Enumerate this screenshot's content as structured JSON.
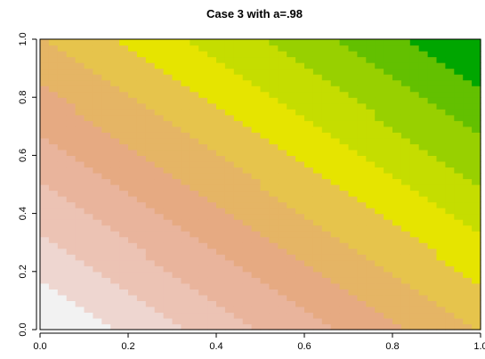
{
  "chart_data": {
    "type": "heatmap",
    "title": "Case 3 with a=.98",
    "xlabel": "",
    "ylabel": "",
    "xlim": [
      0,
      1
    ],
    "ylim": [
      0,
      1
    ],
    "x_ticks": [
      "0.0",
      "0.2",
      "0.4",
      "0.6",
      "0.8",
      "1.0"
    ],
    "y_ticks": [
      "0.0",
      "0.2",
      "0.4",
      "0.6",
      "0.8",
      "1.0"
    ],
    "grid": false,
    "legend": "none",
    "value_function": "x + 0.98*y",
    "value_range": [
      0,
      1.98
    ],
    "levels": 12,
    "palette": [
      "#f2f2f2",
      "#eed6d0",
      "#ecc3b4",
      "#e9b49c",
      "#e6aa82",
      "#e5b565",
      "#e6c44c",
      "#e6e400",
      "#c5dd00",
      "#98d000",
      "#63c000",
      "#00a600"
    ],
    "grid_cells": 50
  }
}
